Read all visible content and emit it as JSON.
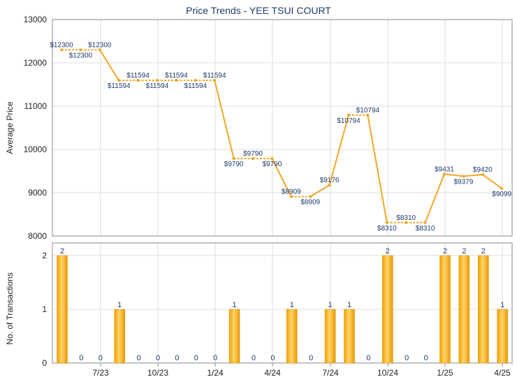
{
  "chart_data": [
    {
      "type": "line",
      "title": "Price Trends - YEE TSUI COURT",
      "ylabel": "Average Price",
      "ylim": [
        8000,
        13000
      ],
      "yticks": [
        8000,
        9000,
        10000,
        11000,
        12000,
        13000
      ],
      "xticks": [
        "7/23",
        "10/23",
        "1/24",
        "4/24",
        "7/24",
        "10/24",
        "1/25",
        "4/25"
      ],
      "series": [
        {
          "color": "#f5a623",
          "values": [
            12300,
            12300,
            12300,
            11594,
            11594,
            11594,
            11594,
            11594,
            11594,
            9790,
            9790,
            9790,
            8909,
            8909,
            9176,
            10794,
            10794,
            8310,
            8310,
            8310,
            9431,
            9379,
            9420,
            9099
          ],
          "labels": [
            "$12300",
            "$12300",
            "$12300",
            "$11594",
            "$11594",
            "$11594",
            "$11594",
            "$11594",
            "$11594",
            "$9790",
            "$9790",
            "$9790",
            "$8909",
            "$8909",
            "$9176",
            "$10794",
            "$10794",
            "$8310",
            "$8310",
            "$8310",
            "$9431",
            "$9379",
            "$9420",
            "$9099"
          ]
        }
      ]
    },
    {
      "type": "bar",
      "ylabel": "No. of Transactions",
      "ylim": [
        0,
        2
      ],
      "yticks": [
        0,
        1,
        2
      ],
      "xticks": [
        "7/23",
        "10/23",
        "1/24",
        "4/24",
        "7/24",
        "10/24",
        "1/25",
        "4/25"
      ],
      "values": [
        2,
        0,
        0,
        1,
        0,
        0,
        0,
        0,
        0,
        1,
        0,
        0,
        1,
        0,
        1,
        1,
        0,
        2,
        0,
        0,
        2,
        2,
        2,
        1
      ],
      "color": "#f5a623"
    }
  ]
}
